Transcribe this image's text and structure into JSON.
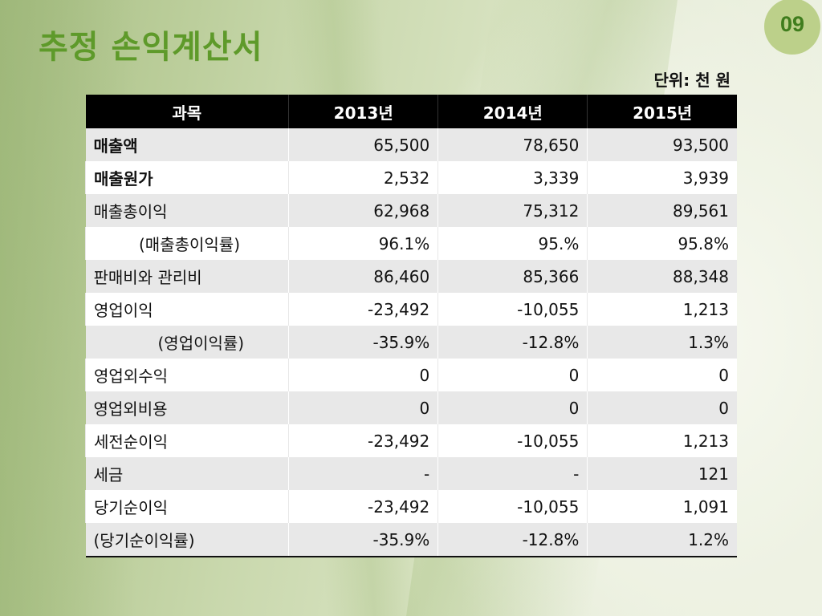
{
  "title": "추정 손익계산서",
  "page_number": "09",
  "unit": "단위: 천 원",
  "table": {
    "headers": [
      "과목",
      "2013년",
      "2014년",
      "2015년"
    ],
    "rows": [
      {
        "label": "매출액",
        "values": [
          "65,500",
          "78,650",
          "93,500"
        ]
      },
      {
        "label": "매출원가",
        "values": [
          "2,532",
          "3,339",
          "3,939"
        ]
      },
      {
        "label": "매출총이익",
        "values": [
          "62,968",
          "75,312",
          "89,561"
        ]
      },
      {
        "label": "(매출총이익률)",
        "values": [
          "96.1%",
          "95.%",
          "95.8%"
        ]
      },
      {
        "label": "판매비와 관리비",
        "values": [
          "86,460",
          "85,366",
          "88,348"
        ]
      },
      {
        "label": "영업이익",
        "values": [
          "-23,492",
          "-10,055",
          "1,213"
        ]
      },
      {
        "label": "(영업이익률)",
        "values": [
          "-35.9%",
          "-12.8%",
          "1.3%"
        ]
      },
      {
        "label": "영업외수익",
        "values": [
          "0",
          "0",
          "0"
        ]
      },
      {
        "label": "영업외비용",
        "values": [
          "0",
          "0",
          "0"
        ]
      },
      {
        "label": "세전순이익",
        "values": [
          "-23,492",
          "-10,055",
          "1,213"
        ]
      },
      {
        "label": "세금",
        "values": [
          "-",
          "-",
          "121"
        ]
      },
      {
        "label": "당기순이익",
        "values": [
          "-23,492",
          "-10,055",
          "1,091"
        ]
      },
      {
        "label": "(당기순이익률)",
        "values": [
          "-35.9%",
          "-12.8%",
          "1.2%"
        ]
      }
    ]
  }
}
